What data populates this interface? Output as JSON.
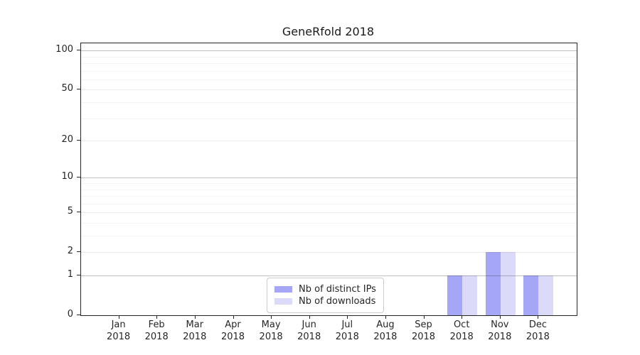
{
  "chart_data": {
    "type": "bar",
    "title": "GeneRfold 2018",
    "categories": [
      "Jan 2018",
      "Feb 2018",
      "Mar 2018",
      "Apr 2018",
      "May 2018",
      "Jun 2018",
      "Jul 2018",
      "Aug 2018",
      "Sep 2018",
      "Oct 2018",
      "Nov 2018",
      "Dec 2018"
    ],
    "series": [
      {
        "name": "Nb of distinct IPs",
        "color": "#a6a6f7",
        "values": [
          0,
          0,
          0,
          0,
          0,
          0,
          0,
          0,
          0,
          1,
          2,
          1
        ]
      },
      {
        "name": "Nb of downloads",
        "color": "#dbdbf9",
        "values": [
          0,
          0,
          0,
          0,
          0,
          0,
          0,
          0,
          0,
          1,
          2,
          1
        ]
      }
    ],
    "xlabel": "",
    "ylabel": "",
    "y_scale": "log1p",
    "y_ticks": [
      0,
      1,
      2,
      5,
      10,
      20,
      50,
      100
    ],
    "y_minor_ticks": [
      3,
      4,
      6,
      7,
      8,
      9,
      30,
      40,
      60,
      70,
      80,
      90
    ],
    "ylim": [
      0,
      113
    ],
    "grid": "horizontal",
    "legend_position": "lower center",
    "colors": {
      "spine": "#262626",
      "grid_major": "#c2c2c2",
      "grid_mid": "#ececec",
      "grid_minor": "#f3f3f3",
      "background": "#ffffff"
    }
  }
}
